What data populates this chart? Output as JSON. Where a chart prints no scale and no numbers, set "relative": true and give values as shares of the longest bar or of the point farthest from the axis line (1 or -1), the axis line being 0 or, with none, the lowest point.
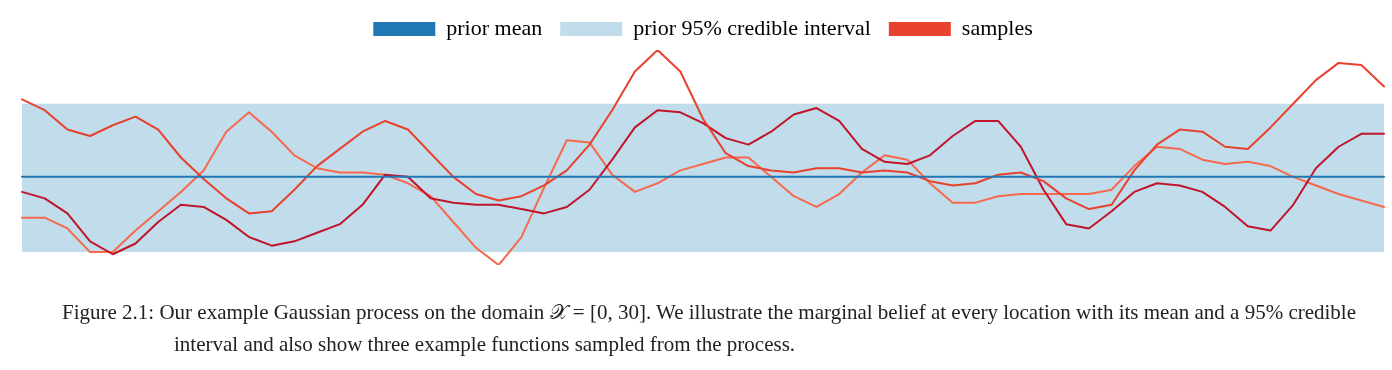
{
  "chart_data": {
    "type": "line",
    "relative": true,
    "tick_labels": false,
    "legend": "top",
    "marker": "none",
    "line_style": "solid",
    "categories": [
      null,
      null,
      null,
      null,
      null,
      null,
      null,
      null,
      null,
      null,
      null,
      null,
      null,
      null,
      null,
      null,
      null,
      null,
      null,
      null,
      null,
      null,
      null,
      null,
      null,
      null,
      null,
      null,
      null,
      null,
      null,
      null,
      null,
      null,
      null,
      null,
      null,
      null,
      null,
      null,
      null,
      null,
      null,
      null,
      null,
      null,
      null,
      null,
      null,
      null,
      null,
      null,
      null,
      null,
      null,
      null,
      null,
      null,
      null,
      null,
      null
    ],
    "bands": [
      {
        "axis": "y",
        "from": 0.06,
        "to": 0.75,
        "label": "prior 95% credible interval",
        "color": "#c1dcea"
      }
    ],
    "series": [
      {
        "name": "prior mean",
        "color": "#1f77b4",
        "values": [
          0.41,
          0.41,
          0.41,
          0.41,
          0.41,
          0.41,
          0.41,
          0.41,
          0.41,
          0.41,
          0.41,
          0.41,
          0.41,
          0.41,
          0.41,
          0.41,
          0.41,
          0.41,
          0.41,
          0.41,
          0.41,
          0.41,
          0.41,
          0.41,
          0.41,
          0.41,
          0.41,
          0.41,
          0.41,
          0.41,
          0.41,
          0.41,
          0.41,
          0.41,
          0.41,
          0.41,
          0.41,
          0.41,
          0.41,
          0.41,
          0.41,
          0.41,
          0.41,
          0.41,
          0.41,
          0.41,
          0.41,
          0.41,
          0.41,
          0.41,
          0.41,
          0.41,
          0.41,
          0.41,
          0.41,
          0.41,
          0.41,
          0.41,
          0.41,
          0.41,
          0.41
        ]
      },
      {
        "name": "samples",
        "color": "#e8412e",
        "values": [
          0.77,
          0.72,
          0.63,
          0.6,
          0.65,
          0.69,
          0.63,
          0.5,
          0.4,
          0.31,
          0.24,
          0.25,
          0.35,
          0.46,
          0.54,
          0.62,
          0.67,
          0.63,
          0.52,
          0.41,
          0.33,
          0.3,
          0.32,
          0.37,
          0.44,
          0.56,
          0.72,
          0.9,
          1.0,
          0.9,
          0.68,
          0.52,
          0.46,
          0.44,
          0.43,
          0.45,
          0.45,
          0.43,
          0.44,
          0.43,
          0.39,
          0.37,
          0.38,
          0.42,
          0.43,
          0.39,
          0.31,
          0.26,
          0.28,
          0.44,
          0.56,
          0.63,
          0.62,
          0.55,
          0.54,
          0.64,
          0.75,
          0.86,
          0.94,
          0.93,
          0.83
        ]
      },
      {
        "color": "#c0152a",
        "values": [
          0.34,
          0.31,
          0.24,
          0.11,
          0.05,
          0.1,
          0.2,
          0.28,
          0.27,
          0.21,
          0.13,
          0.09,
          0.11,
          0.15,
          0.19,
          0.28,
          0.42,
          0.41,
          0.31,
          0.29,
          0.28,
          0.28,
          0.26,
          0.24,
          0.27,
          0.35,
          0.49,
          0.64,
          0.72,
          0.71,
          0.66,
          0.59,
          0.56,
          0.62,
          0.7,
          0.73,
          0.67,
          0.54,
          0.48,
          0.47,
          0.51,
          0.6,
          0.67,
          0.67,
          0.55,
          0.35,
          0.19,
          0.17,
          0.25,
          0.34,
          0.38,
          0.37,
          0.34,
          0.27,
          0.18,
          0.16,
          0.28,
          0.45,
          0.55,
          0.61,
          0.61
        ]
      },
      {
        "color": "#f7694d",
        "values": [
          0.22,
          0.22,
          0.17,
          0.06,
          0.06,
          0.16,
          0.25,
          0.34,
          0.44,
          0.62,
          0.71,
          0.62,
          0.51,
          0.45,
          0.43,
          0.43,
          0.42,
          0.38,
          0.32,
          0.2,
          0.08,
          0,
          0.13,
          0.36,
          0.58,
          0.57,
          0.42,
          0.34,
          0.38,
          0.44,
          0.47,
          0.5,
          0.5,
          0.41,
          0.32,
          0.27,
          0.33,
          0.43,
          0.51,
          0.49,
          0.38,
          0.29,
          0.29,
          0.32,
          0.33,
          0.33,
          0.33,
          0.33,
          0.35,
          0.46,
          0.55,
          0.54,
          0.49,
          0.47,
          0.48,
          0.46,
          0.41,
          0.37,
          0.33,
          0.3,
          0.27
        ]
      }
    ],
    "annotations": [
      "Figure 2.1: Our example Gaussian process on the domain 𝒳 = [0, 30]. We illustrate the marginal belief at every location with its mean and a 95% credible interval and also show three example functions sampled from the process."
    ]
  }
}
